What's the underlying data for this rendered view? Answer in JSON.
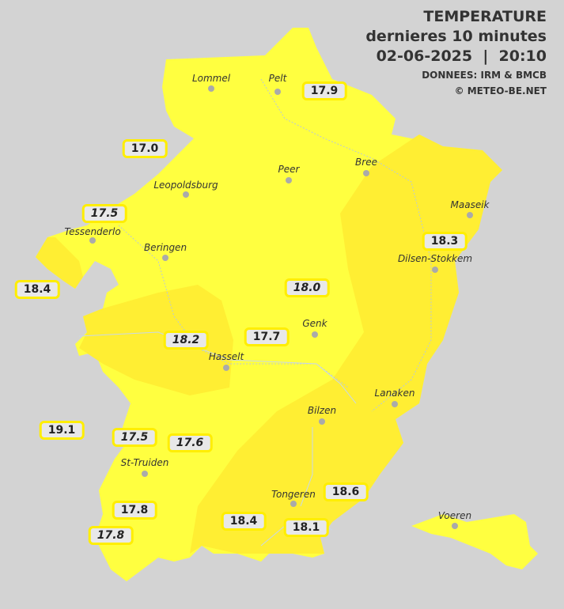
{
  "header": {
    "title": "TEMPERATURE",
    "subtitle": "dernieres 10 minutes",
    "datetime": "02-06-2025  |  20:10",
    "source": "DONNEES: IRM & BMCB",
    "copyright": "© METEO-BE.NET"
  },
  "colors": {
    "background": "#d3d3d3",
    "zone_light": "#ffff40",
    "zone_warm": "#ffee33",
    "badge_border": "#ffee00"
  },
  "cities": [
    "Lommel",
    "Pelt",
    "Peer",
    "Bree",
    "Leopoldsburg",
    "Maaseik",
    "Tessenderlo",
    "Beringen",
    "Dilsen-Stokkem",
    "Genk",
    "Hasselt",
    "Lanaken",
    "Bilzen",
    "St-Truiden",
    "Tongeren",
    "Voeren"
  ],
  "readings": [
    {
      "value": "17.9",
      "italic": false
    },
    {
      "value": "17.0",
      "italic": false
    },
    {
      "value": "17.5",
      "italic": true
    },
    {
      "value": "18.3",
      "italic": false
    },
    {
      "value": "18.4",
      "italic": false
    },
    {
      "value": "18.0",
      "italic": true
    },
    {
      "value": "17.7",
      "italic": false
    },
    {
      "value": "18.2",
      "italic": true
    },
    {
      "value": "19.1",
      "italic": false
    },
    {
      "value": "17.5",
      "italic": true
    },
    {
      "value": "17.6",
      "italic": true
    },
    {
      "value": "17.8",
      "italic": false
    },
    {
      "value": "17.8",
      "italic": true
    },
    {
      "value": "18.4",
      "italic": false
    },
    {
      "value": "18.6",
      "italic": false
    },
    {
      "value": "18.1",
      "italic": false
    }
  ]
}
